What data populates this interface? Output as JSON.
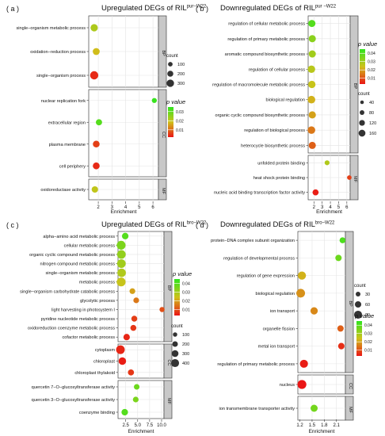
{
  "chart_data": [
    {
      "type": "scatter",
      "panel_label": "( a )",
      "title": "Upregulated DEGs of RIL",
      "title_sup": "pur−W22",
      "xlabel": "Enrichment",
      "x_ticks": [
        2,
        3,
        4,
        5,
        6
      ],
      "xlim": [
        1.3,
        6.4
      ],
      "legend_placement": "right",
      "count_legend": {
        "title": "count",
        "values": [
          "100",
          "200",
          "300"
        ]
      },
      "pvalue_legend": {
        "title": "p value",
        "ticks": [
          "0.03",
          "0.02",
          "0.01"
        ],
        "max": 0.035,
        "min": 0.002
      },
      "groups": [
        {
          "name": "BP",
          "terms": [
            {
              "term": "single−organism metabolic process",
              "x": 1.7,
              "count": 200,
              "p": 0.022
            },
            {
              "term": "oxidation−reduction process",
              "x": 1.85,
              "count": 160,
              "p": 0.018
            },
            {
              "term": "single−organism process",
              "x": 1.7,
              "count": 330,
              "p": 0.004
            }
          ]
        },
        {
          "name": "CC",
          "terms": [
            {
              "term": "nuclear replication fork",
              "x": 6.1,
              "count": 20,
              "p": 0.034
            },
            {
              "term": "extracellular region",
              "x": 2.05,
              "count": 90,
              "p": 0.031
            },
            {
              "term": "plasma membrane",
              "x": 1.85,
              "count": 140,
              "p": 0.006
            },
            {
              "term": "cell periphery",
              "x": 1.85,
              "count": 150,
              "p": 0.004
            }
          ]
        },
        {
          "name": "MF",
          "terms": [
            {
              "term": "oxidoreductase activity",
              "x": 1.75,
              "count": 110,
              "p": 0.02
            }
          ]
        }
      ]
    },
    {
      "type": "scatter",
      "panel_label": "( b )",
      "title": "Downregulated DEGs of RIL",
      "title_sup": "pur −W22",
      "xlabel": "Enrichment",
      "x_ticks": [
        2,
        3,
        4,
        5,
        6
      ],
      "xlim": [
        1.3,
        6.4
      ],
      "legend_placement": "right",
      "count_legend": {
        "title": "count",
        "values": [
          "40",
          "80",
          "120",
          "160"
        ]
      },
      "pvalue_legend": {
        "title": "p value",
        "ticks": [
          "0.04",
          "0.03",
          "0.02",
          "0.01"
        ],
        "max": 0.045,
        "min": 0.003
      },
      "groups": [
        {
          "name": "BP",
          "terms": [
            {
              "term": "regulation of cellular metabolic process",
              "x": 1.75,
              "count": 130,
              "p": 0.04
            },
            {
              "term": "regulation of primary metabolic process",
              "x": 1.8,
              "count": 130,
              "p": 0.033
            },
            {
              "term": "aromatic compound biosynthetic process",
              "x": 1.8,
              "count": 130,
              "p": 0.03
            },
            {
              "term": "regulation of cellular process",
              "x": 1.7,
              "count": 150,
              "p": 0.027
            },
            {
              "term": "regulation of macromolecule metabolic process",
              "x": 1.75,
              "count": 140,
              "p": 0.025
            },
            {
              "term": "biological regulation",
              "x": 1.7,
              "count": 160,
              "p": 0.022
            },
            {
              "term": "organic cyclic compound biosynthetic process",
              "x": 1.8,
              "count": 135,
              "p": 0.02
            },
            {
              "term": "regulation of biological process",
              "x": 1.7,
              "count": 155,
              "p": 0.015
            },
            {
              "term": "heterocycle biosynthetic process",
              "x": 1.8,
              "count": 130,
              "p": 0.012
            }
          ]
        },
        {
          "name": "MF",
          "terms": [
            {
              "term": "unfolded protein binding",
              "x": 3.6,
              "count": 25,
              "p": 0.028
            },
            {
              "term": "heat shock protein binding",
              "x": 6.3,
              "count": 15,
              "p": 0.008
            },
            {
              "term": "nucleic acid binding transcription factor activity",
              "x": 2.2,
              "count": 70,
              "p": 0.004
            }
          ]
        }
      ]
    },
    {
      "type": "scatter",
      "panel_label": "( c )",
      "title": "Upregulated DEGs of RIL",
      "title_sup": "bro−W22",
      "xlabel": "Enrichment",
      "x_ticks": [
        2.5,
        5.0,
        7.5,
        10.0
      ],
      "x_tick_labels": [
        "2.5",
        "5.0",
        "7.5",
        "10.0"
      ],
      "xlim": [
        0.9,
        10.5
      ],
      "legend_placement": "right",
      "count_legend": {
        "title": "count",
        "values": [
          "100",
          "200",
          "300",
          "400"
        ]
      },
      "pvalue_legend": {
        "title": "p value",
        "ticks": [
          "0.04",
          "0.03",
          "0.02",
          "0.01"
        ],
        "max": 0.045,
        "min": 0.003
      },
      "groups": [
        {
          "name": "BP",
          "terms": [
            {
              "term": "alpha−amino acid metabolic process",
              "x": 2.4,
              "count": 120,
              "p": 0.04
            },
            {
              "term": "cellular metabolic process",
              "x": 1.55,
              "count": 430,
              "p": 0.035
            },
            {
              "term": "organic cyclic compound metabolic process",
              "x": 1.6,
              "count": 400,
              "p": 0.032
            },
            {
              "term": "nitrogen compound metabolic process",
              "x": 1.6,
              "count": 400,
              "p": 0.03
            },
            {
              "term": "single−organism metabolic process",
              "x": 1.65,
              "count": 380,
              "p": 0.028
            },
            {
              "term": "metabolic process",
              "x": 1.55,
              "count": 440,
              "p": 0.025
            },
            {
              "term": "single−organism carbohydrate catabolic process",
              "x": 3.9,
              "count": 60,
              "p": 0.02
            },
            {
              "term": "glycolytic process",
              "x": 4.7,
              "count": 55,
              "p": 0.015
            },
            {
              "term": "light harvesting in photosystem I",
              "x": 10.1,
              "count": 25,
              "p": 0.01
            },
            {
              "term": "pyridine nucleotide metabolic process",
              "x": 4.3,
              "count": 70,
              "p": 0.008
            },
            {
              "term": "oxidoreduction coenzyme metabolic process",
              "x": 4.1,
              "count": 75,
              "p": 0.007
            },
            {
              "term": "cofactor metabolic process",
              "x": 2.7,
              "count": 110,
              "p": 0.005
            }
          ]
        },
        {
          "name": "CC",
          "terms": [
            {
              "term": "cytoplasm",
              "x": 1.4,
              "count": 410,
              "p": 0.005
            },
            {
              "term": "chloroplast",
              "x": 1.8,
              "count": 230,
              "p": 0.004
            },
            {
              "term": "chloroplast thylakoid",
              "x": 3.6,
              "count": 80,
              "p": 0.007
            }
          ]
        },
        {
          "name": "MF",
          "terms": [
            {
              "term": "quercetin 7−O−glucosyltransferase activity",
              "x": 4.8,
              "count": 50,
              "p": 0.037
            },
            {
              "term": "quercetin 3−O−glucosyltransferase activity",
              "x": 4.6,
              "count": 55,
              "p": 0.035
            },
            {
              "term": "coenzyme binding",
              "x": 2.3,
              "count": 120,
              "p": 0.04
            }
          ]
        }
      ]
    },
    {
      "type": "scatter",
      "panel_label": "( d )",
      "title": "Downregulated DEGs of RIL",
      "title_sup": "bro−W22",
      "xlabel": "Enrichment",
      "x_ticks": [
        1.2,
        1.5,
        1.8,
        2.1
      ],
      "x_tick_labels": [
        "1.2",
        "1.5",
        "1.8",
        "2.1"
      ],
      "xlim": [
        1.15,
        2.32
      ],
      "legend_placement": "right",
      "count_legend": {
        "title": "count",
        "values": [
          "30",
          "60",
          "90"
        ]
      },
      "pvalue_legend": {
        "title": "p value",
        "ticks": [
          "0.04",
          "0.03",
          "0.02",
          "0.01"
        ],
        "max": 0.045,
        "min": 0.003
      },
      "groups": [
        {
          "name": "BP",
          "terms": [
            {
              "term": "protein−DNA complex subunit organization",
              "x": 2.25,
              "count": 18,
              "p": 0.041
            },
            {
              "term": "regulation of developmental process",
              "x": 2.15,
              "count": 25,
              "p": 0.037
            },
            {
              "term": "regulation of gene expression",
              "x": 1.25,
              "count": 80,
              "p": 0.022
            },
            {
              "term": "biological regulation",
              "x": 1.22,
              "count": 100,
              "p": 0.018
            },
            {
              "term": "ion transport",
              "x": 1.55,
              "count": 50,
              "p": 0.017
            },
            {
              "term": "organelle fission",
              "x": 2.2,
              "count": 25,
              "p": 0.012
            },
            {
              "term": "metal ion transport",
              "x": 2.22,
              "count": 28,
              "p": 0.006
            },
            {
              "term": "regulation of primary metabolic process",
              "x": 1.3,
              "count": 75,
              "p": 0.004
            }
          ]
        },
        {
          "name": "CC",
          "terms": [
            {
              "term": "nucleus",
              "x": 1.25,
              "count": 110,
              "p": 0.003
            }
          ]
        },
        {
          "name": "MF",
          "terms": [
            {
              "term": "ion transmembrane transporter activity",
              "x": 1.55,
              "count": 45,
              "p": 0.036
            }
          ]
        }
      ]
    }
  ]
}
